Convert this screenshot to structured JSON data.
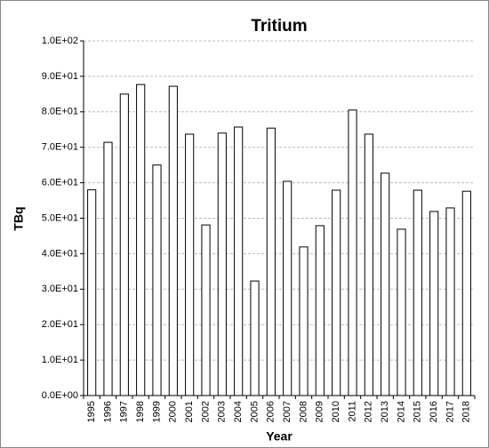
{
  "chart_data": {
    "type": "bar",
    "title": "Tritium",
    "x_label": "Year",
    "y_label": "TBq",
    "categories": [
      "1995",
      "1996",
      "1997",
      "1998",
      "1999",
      "2000",
      "2001",
      "2002",
      "2003",
      "2004",
      "2005",
      "2006",
      "2007",
      "2008",
      "2009",
      "2010",
      "2011",
      "2012",
      "2013",
      "2014",
      "2015",
      "2016",
      "2017",
      "2018"
    ],
    "values": [
      58,
      71.4,
      85,
      87.7,
      65,
      87.2,
      73.7,
      48.1,
      74,
      75.7,
      32.3,
      75.4,
      60.4,
      41.9,
      47.9,
      57.9,
      80.5,
      73.7,
      62.7,
      46.9,
      57.9,
      51.9,
      52.9,
      57.6
    ],
    "color": "#ffffff",
    "ylim": [
      0,
      100
    ],
    "yticks": [
      {
        "value": 0,
        "label": "0.0E+00"
      },
      {
        "value": 10,
        "label": "1.0E+01"
      },
      {
        "value": 20,
        "label": "2.0E+01"
      },
      {
        "value": 30,
        "label": "3.0E+01"
      },
      {
        "value": 40,
        "label": "4.0E+01"
      },
      {
        "value": 50,
        "label": "5.0E+01"
      },
      {
        "value": 60,
        "label": "6.0E+01"
      },
      {
        "value": 70,
        "label": "7.0E+01"
      },
      {
        "value": 80,
        "label": "8.0E+01"
      },
      {
        "value": 90,
        "label": "9.0E+01"
      },
      {
        "value": 100,
        "label": "1.0E+02"
      }
    ],
    "grid": true
  }
}
